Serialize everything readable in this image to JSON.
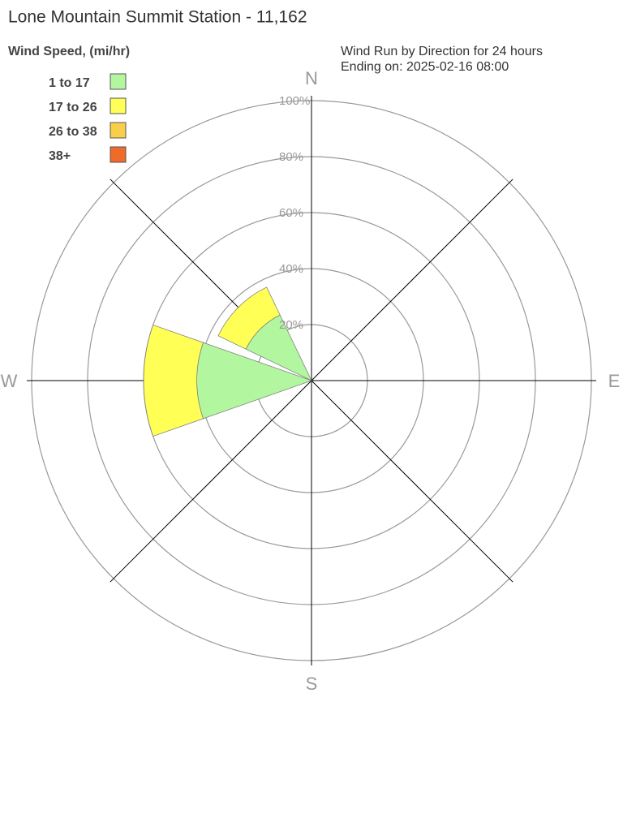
{
  "chart_data": {
    "type": "windrose",
    "title": "Lone Mountain Summit Station - 11,162",
    "legend_title": "Wind Speed, (mi/hr)",
    "subtitle": [
      "Wind Run by Direction for 24 hours",
      "Ending on: 2025-02-16 08:00"
    ],
    "categories": [
      "N",
      null,
      "E",
      null,
      "S",
      null,
      "W",
      null
    ],
    "series": [
      {
        "name": "1 to 17",
        "color": "#b2f7a0",
        "values": [
          0,
          0,
          0,
          0,
          0,
          0,
          41,
          26
        ]
      },
      {
        "name": "17 to 26",
        "color": "#ffff55",
        "values": [
          0,
          0,
          0,
          0,
          0,
          0,
          19,
          11
        ]
      },
      {
        "name": "26 to 38",
        "color": "#f9cf4a",
        "values": [
          0,
          0,
          0,
          0,
          0,
          0,
          0,
          0
        ]
      },
      {
        "name": "38+",
        "color": "#ef6b2a",
        "values": [
          0,
          0,
          0,
          0,
          0,
          0,
          0,
          0
        ]
      }
    ],
    "rlim": [
      0,
      100
    ],
    "rticks": [
      {
        "value": 20,
        "label": "20%"
      },
      {
        "value": 40,
        "label": "40%"
      },
      {
        "value": 60,
        "label": "60%"
      },
      {
        "value": 80,
        "label": "80%"
      },
      {
        "value": 100,
        "label": "100%"
      }
    ]
  }
}
